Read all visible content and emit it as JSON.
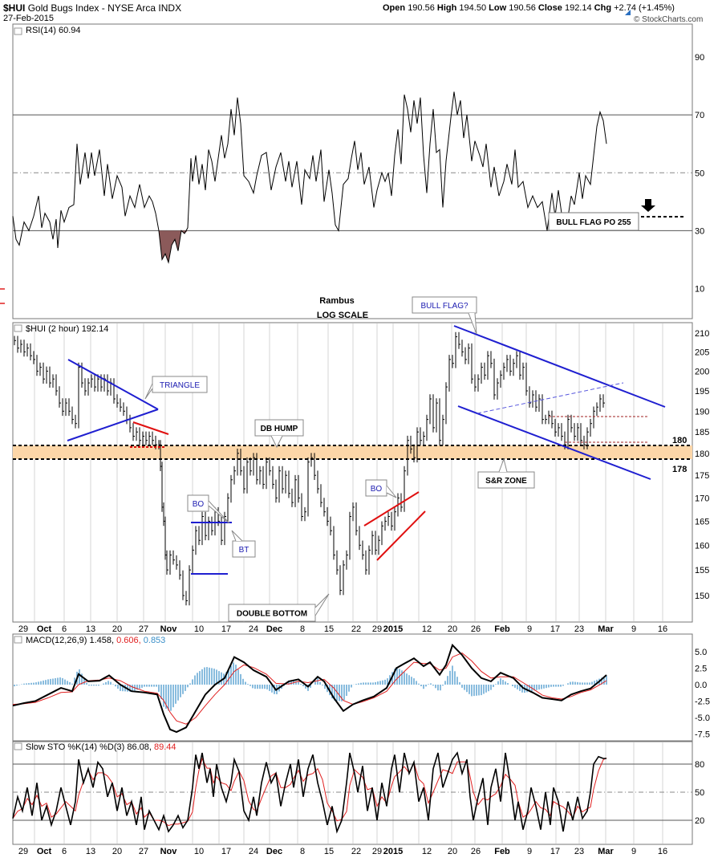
{
  "header": {
    "symbol": "$HUI",
    "name": "Gold Bugs Index - NYSE Arca INDX",
    "date": "27-Feb-2015",
    "ohlc": {
      "open_label": "Open",
      "open": "190.56",
      "high_label": "High",
      "high": "194.50",
      "low_label": "Low",
      "low": "190.56",
      "close_label": "Close",
      "close": "192.14",
      "chg_label": "Chg",
      "chg": "+2.74 (+1.45%)"
    },
    "copyright": "© StockCharts.com",
    "trend_arrow": "arrow-up-icon"
  },
  "colors": {
    "price": "#000000",
    "trend_blue": "#1f1fd0",
    "trend_red": "#e01010",
    "zone": "#fcd6a8",
    "macd_hist": "#3a8fc8",
    "signal_red": "#e02020",
    "rsi_fill": "#8b5a5a",
    "label_blue": "#1a1ab0"
  },
  "chart_data": [
    {
      "id": "rsi",
      "type": "line",
      "title": "RSI(14) 60.94",
      "ylim": [
        0,
        100
      ],
      "yticks": [
        90,
        70,
        50,
        30,
        10
      ],
      "reference_lines": [
        70,
        50,
        30
      ],
      "annotations": [
        {
          "text": "BULL FLAG PO 255"
        },
        {
          "text": "Rambus"
        },
        {
          "text": "LOG SCALE"
        }
      ]
    },
    {
      "id": "price",
      "type": "line",
      "title": "$HUI (2 hour) 192.14",
      "scale": "log",
      "ylim": [
        145,
        212
      ],
      "yticks": [
        210,
        205,
        200,
        195,
        190,
        185,
        180,
        175,
        170,
        165,
        160,
        155,
        150
      ],
      "levels": [
        {
          "value": 180,
          "label": "180"
        },
        {
          "value": 178,
          "label": "178"
        }
      ],
      "x_tick_labels": [
        "29",
        "Oct",
        "6",
        "13",
        "20",
        "27",
        "Nov",
        "10",
        "17",
        "24",
        "Dec",
        "8",
        "15",
        "22",
        "29",
        "2015",
        "12",
        "20",
        "26",
        "Feb",
        "9",
        "17",
        "23",
        "Mar",
        "9",
        "16"
      ],
      "annotations": [
        {
          "text": "TRIANGLE"
        },
        {
          "text": "DB HUMP"
        },
        {
          "text": "BO"
        },
        {
          "text": "BT"
        },
        {
          "text": "DOUBLE BOTTOM"
        },
        {
          "text": "BO"
        },
        {
          "text": "BULL FLAG?"
        },
        {
          "text": "S&R ZONE"
        }
      ]
    },
    {
      "id": "macd",
      "type": "line",
      "title": "MACD(12,26,9) 1.458, 0.606, 0.853",
      "title_parts": [
        "MACD(12,26,9)",
        "1.458,",
        "0.606,",
        "0.853"
      ],
      "ylim": [
        -8.5,
        7.0
      ],
      "yticks": [
        "5.0",
        "2.5",
        "0.0",
        "-2.5",
        "-5.0",
        "-7.5"
      ],
      "ytick_values": [
        5.0,
        2.5,
        0.0,
        -2.5,
        -5.0,
        -7.5
      ]
    },
    {
      "id": "sto",
      "type": "line",
      "title": "Slow STO %K(14) %D(3) 86.08, 89.44",
      "title_parts": [
        "Slow STO %K(14) %D(3)",
        "86.08,",
        "89.44"
      ],
      "ylim": [
        0,
        100
      ],
      "yticks": [
        80,
        50,
        20
      ],
      "reference_lines": [
        80,
        50,
        20
      ],
      "x_tick_labels": [
        "29",
        "Oct",
        "6",
        "13",
        "20",
        "27",
        "Nov",
        "10",
        "17",
        "24",
        "Dec",
        "8",
        "15",
        "22",
        "29",
        "2015",
        "12",
        "20",
        "26",
        "Feb",
        "9",
        "17",
        "23",
        "Mar",
        "9",
        "16"
      ]
    }
  ]
}
